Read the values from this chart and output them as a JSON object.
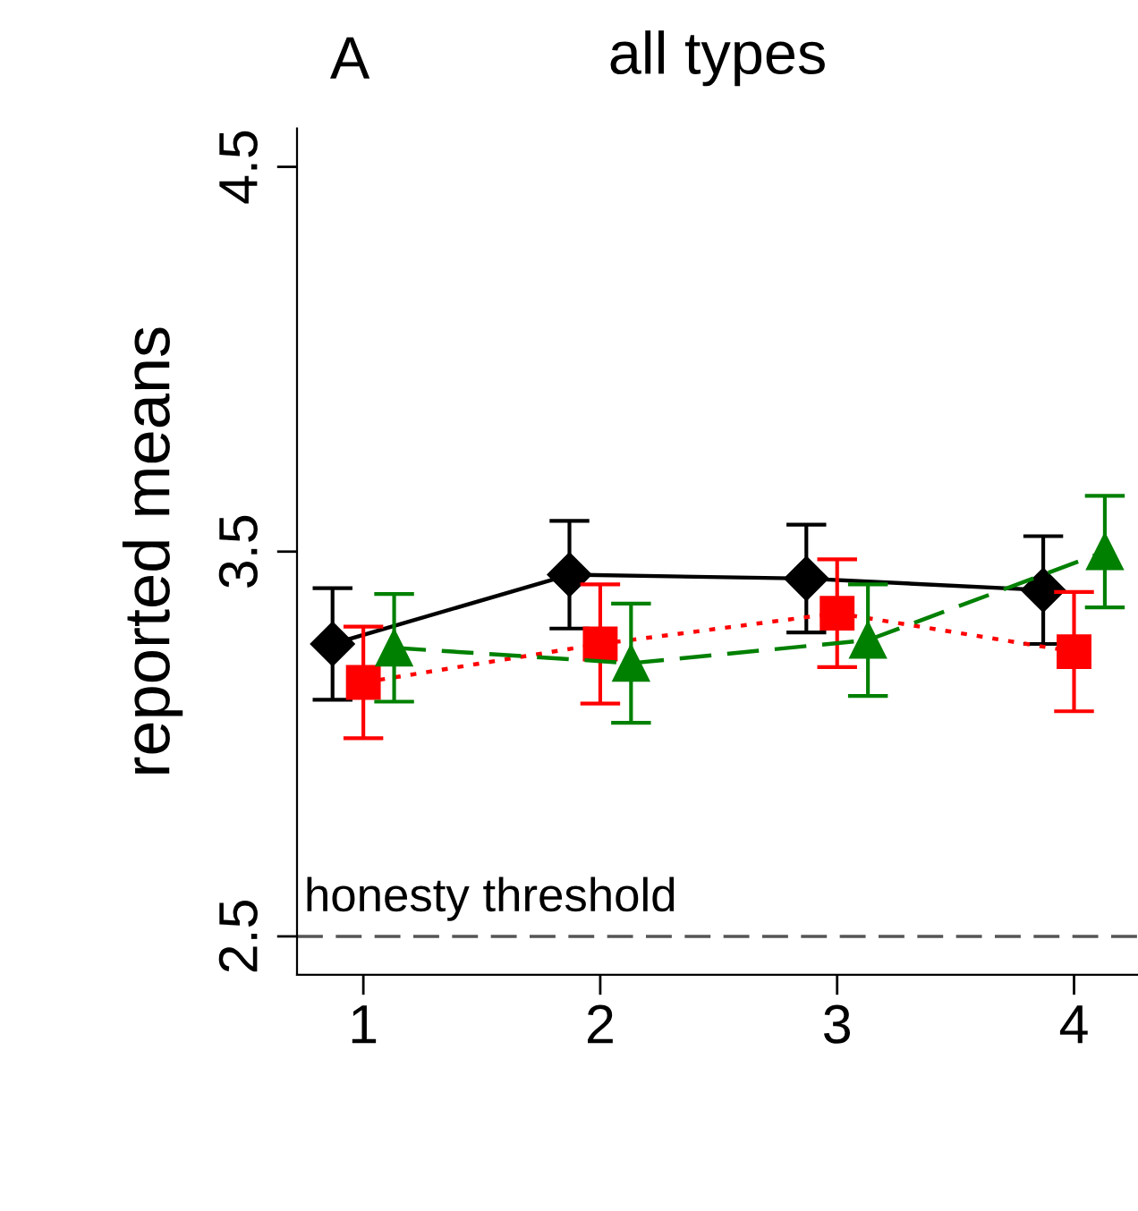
{
  "chart_data": {
    "type": "line",
    "title": "all types",
    "ylabel": "reported means",
    "annotations": [
      "A"
    ],
    "xlim": [
      0.72,
      4.27
    ],
    "xticks": [
      1,
      2,
      3,
      4
    ],
    "ylim": [
      2.4,
      4.6
    ],
    "yticks": [
      2.5,
      3.5,
      4.5
    ],
    "grid": false,
    "legend": false,
    "ref_lines": [
      {
        "axis": "y",
        "value": 2.5,
        "label": "honesty threshold",
        "color": "#555555",
        "line_style": "dashed"
      }
    ],
    "series": [
      {
        "color": "#000000",
        "marker": "diamond",
        "line_style": "solid",
        "x": [
          0.87,
          1.87,
          2.87,
          3.87
        ],
        "values": [
          3.26,
          3.44,
          3.43,
          3.4
        ],
        "errors": [
          0.145,
          0.14,
          0.14,
          0.14
        ]
      },
      {
        "color": "#ff0000",
        "marker": "square",
        "line_style": "dotted",
        "x": [
          1.0,
          2.0,
          3.0,
          4.0
        ],
        "values": [
          3.16,
          3.26,
          3.34,
          3.24
        ],
        "errors": [
          0.145,
          0.155,
          0.14,
          0.155
        ]
      },
      {
        "color": "#008000",
        "marker": "triangle",
        "line_style": "dashed",
        "x": [
          1.13,
          2.13,
          3.13,
          4.13
        ],
        "values": [
          3.25,
          3.21,
          3.27,
          3.5
        ],
        "errors": [
          0.14,
          0.155,
          0.145,
          0.145
        ]
      }
    ]
  }
}
